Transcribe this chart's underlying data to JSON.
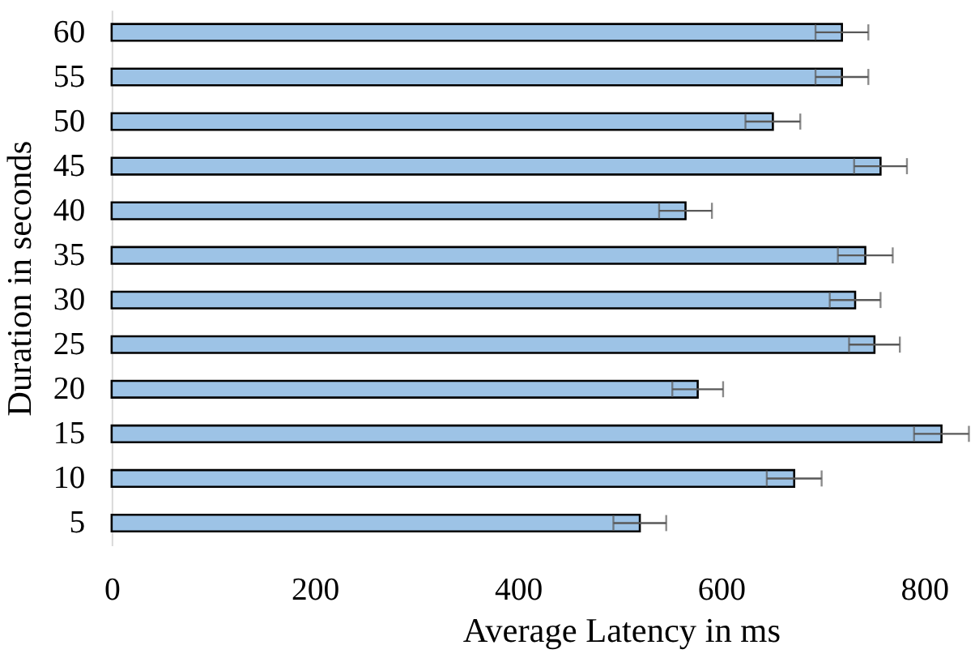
{
  "chart_data": {
    "type": "bar",
    "orientation": "horizontal",
    "xlabel": "Average Latency in ms",
    "ylabel": "Duration in seconds",
    "categories": [
      "60",
      "55",
      "50",
      "45",
      "40",
      "35",
      "30",
      "25",
      "20",
      "15",
      "10",
      "5"
    ],
    "values": [
      719,
      719,
      651,
      757,
      565,
      742,
      732,
      751,
      577,
      817,
      672,
      520
    ],
    "errors": [
      26,
      26,
      27,
      26,
      26,
      27,
      25,
      25,
      25,
      27,
      27,
      26
    ],
    "color": "#9dc3e6",
    "xlim": [
      0,
      850
    ],
    "xticks": [
      0,
      200,
      400,
      600,
      800
    ]
  }
}
